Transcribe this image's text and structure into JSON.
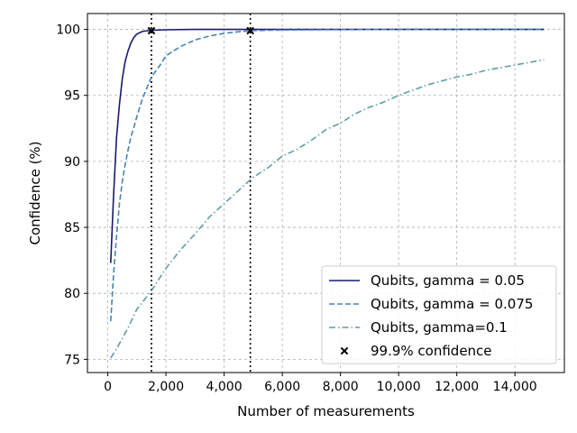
{
  "chart_data": {
    "type": "line",
    "title": "",
    "xlabel": "Number of measurements",
    "ylabel": "Confidence (%)",
    "xlim": [
      -700,
      15700
    ],
    "ylim": [
      74,
      101.2
    ],
    "grid": true,
    "legend_position": "lower-right",
    "x_ticks": [
      0,
      2000,
      4000,
      6000,
      8000,
      10000,
      12000,
      14000
    ],
    "x_tick_labels": [
      "0",
      "2,000",
      "4,000",
      "6,000",
      "8,000",
      "10,000",
      "12,000",
      "14,000"
    ],
    "y_ticks": [
      75,
      80,
      85,
      90,
      95,
      100
    ],
    "y_tick_labels": [
      "75",
      "80",
      "85",
      "90",
      "95",
      "100"
    ],
    "series": [
      {
        "name": "Qubits, gamma = 0.05",
        "color": "#191970",
        "dash": "solid",
        "x": [
          100,
          200,
          300,
          400,
          500,
          600,
          700,
          800,
          900,
          1000,
          1200,
          1500,
          2000,
          3000,
          5000,
          10000,
          15000
        ],
        "y": [
          82.3,
          87.5,
          91.8,
          94.3,
          96.3,
          97.6,
          98.4,
          99.0,
          99.4,
          99.65,
          99.85,
          99.93,
          99.97,
          100,
          100,
          100,
          100
        ]
      },
      {
        "name": "Qubits, gamma = 0.075",
        "color": "#4682b4",
        "dash": "dashed",
        "x": [
          100,
          200,
          300,
          400,
          500,
          600,
          700,
          800,
          900,
          1000,
          1200,
          1500,
          1800,
          2000,
          2500,
          3000,
          3500,
          4000,
          4500,
          4900,
          6000,
          8000,
          10000,
          15000
        ],
        "y": [
          77.9,
          81.5,
          84.3,
          86.8,
          88.5,
          89.8,
          90.9,
          91.9,
          92.6,
          93.4,
          94.8,
          96.4,
          97.3,
          98.0,
          98.7,
          99.2,
          99.5,
          99.7,
          99.82,
          99.9,
          99.95,
          99.98,
          100,
          100
        ]
      },
      {
        "name": "Qubits, gamma=0.1",
        "color": "#5f9ea0",
        "dash": "dashdot",
        "x": [
          100,
          300,
          500,
          700,
          1000,
          1500,
          2000,
          2500,
          3000,
          3500,
          4000,
          4500,
          5000,
          5500,
          6000,
          6500,
          7000,
          7500,
          8000,
          8500,
          9000,
          9500,
          10000,
          10500,
          11000,
          11500,
          12000,
          12500,
          13000,
          13500,
          14000,
          14500,
          15000
        ],
        "y": [
          75.1,
          75.8,
          76.6,
          77.4,
          78.8,
          80.2,
          81.9,
          83.3,
          84.5,
          85.8,
          86.8,
          87.8,
          88.8,
          89.5,
          90.4,
          90.9,
          91.6,
          92.4,
          92.9,
          93.6,
          94.1,
          94.5,
          95.0,
          95.4,
          95.8,
          96.1,
          96.4,
          96.6,
          96.9,
          97.1,
          97.3,
          97.5,
          97.7
        ]
      }
    ],
    "markers": {
      "name": "99.9% confidence",
      "symbol": "x",
      "color": "#000000",
      "points": [
        {
          "x": 1500,
          "y": 99.9
        },
        {
          "x": 4900,
          "y": 99.9
        }
      ]
    },
    "vertical_lines": [
      {
        "x": 1500,
        "style": "dotted",
        "color": "#000000"
      },
      {
        "x": 4900,
        "style": "dotted",
        "color": "#000000"
      }
    ]
  }
}
